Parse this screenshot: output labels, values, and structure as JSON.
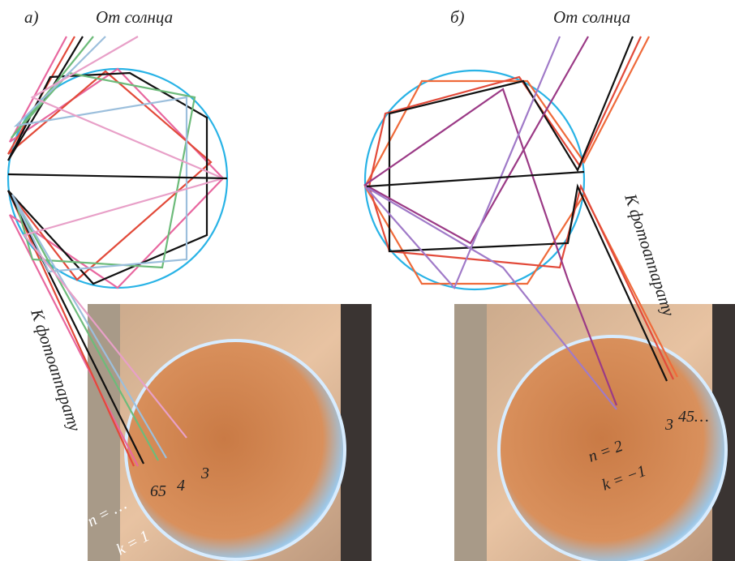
{
  "panels": [
    {
      "label": "а)",
      "sun_label": "От солнца",
      "camera_label": "К фотоаппарату",
      "annotations": [
        "n = …",
        "65",
        "4",
        "3",
        "k = 1"
      ]
    },
    {
      "label": "б)",
      "sun_label": "От солнца",
      "camera_label": "К фотоаппарату",
      "annotations": [
        "n = 2",
        "k = −1",
        "3",
        "45…"
      ]
    }
  ]
}
